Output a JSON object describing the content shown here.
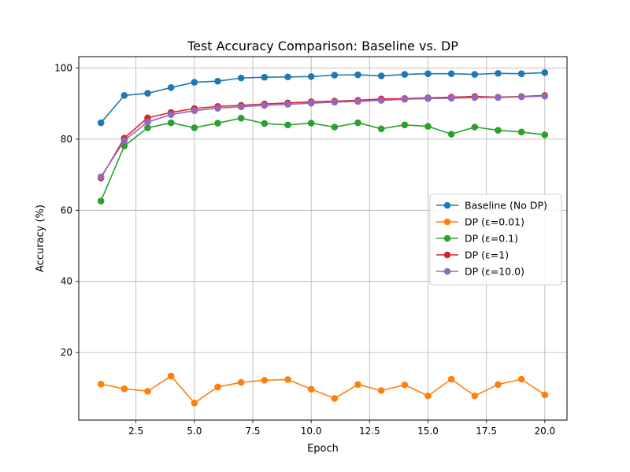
{
  "chart_data": {
    "type": "line",
    "title": "Test Accuracy Comparison: Baseline vs. DP",
    "xlabel": "Epoch",
    "ylabel": "Accuracy (%)",
    "xlim": [
      0.05,
      20.95
    ],
    "ylim": [
      1.0,
      103.2
    ],
    "xticks": [
      2.5,
      5.0,
      7.5,
      10.0,
      12.5,
      15.0,
      17.5,
      20.0
    ],
    "xtick_labels": [
      "2.5",
      "5.0",
      "7.5",
      "10.0",
      "12.5",
      "15.0",
      "17.5",
      "20.0"
    ],
    "yticks": [
      20,
      40,
      60,
      80,
      100
    ],
    "ytick_labels": [
      "20",
      "40",
      "60",
      "80",
      "100"
    ],
    "grid": true,
    "legend_position": "center-right",
    "x": [
      1,
      2,
      3,
      4,
      5,
      6,
      7,
      8,
      9,
      10,
      11,
      12,
      13,
      14,
      15,
      16,
      17,
      18,
      19,
      20
    ],
    "series": [
      {
        "name": "Baseline (No DP)",
        "color": "#1f77b4",
        "values": [
          84.6,
          92.3,
          92.9,
          94.5,
          96.0,
          96.3,
          97.2,
          97.4,
          97.5,
          97.6,
          98.0,
          98.1,
          97.8,
          98.2,
          98.4,
          98.4,
          98.2,
          98.5,
          98.4,
          98.7
        ]
      },
      {
        "name": "DP (ε=0.01)",
        "color": "#ff7f0e",
        "values": [
          11.1,
          9.8,
          9.1,
          13.4,
          5.8,
          10.3,
          11.6,
          12.2,
          12.4,
          9.7,
          7.1,
          11.0,
          9.3,
          10.9,
          7.8,
          12.5,
          7.8,
          11.0,
          12.5,
          8.1
        ]
      },
      {
        "name": "DP (ε=0.1)",
        "color": "#2ca02c",
        "values": [
          62.6,
          78.1,
          83.2,
          84.6,
          83.2,
          84.5,
          85.9,
          84.4,
          84.0,
          84.5,
          83.4,
          84.6,
          82.9,
          84.0,
          83.6,
          81.4,
          83.4,
          82.5,
          82.0,
          81.2
        ]
      },
      {
        "name": "DP (ε=1)",
        "color": "#d62728",
        "values": [
          69.1,
          80.3,
          86.0,
          87.5,
          88.6,
          89.2,
          89.5,
          89.9,
          90.2,
          90.5,
          90.7,
          90.9,
          91.3,
          91.4,
          91.6,
          91.8,
          92.0,
          91.8,
          92.0,
          92.3
        ]
      },
      {
        "name": "DP (ε=10.0)",
        "color": "#9467bd",
        "values": [
          69.4,
          79.6,
          84.8,
          86.9,
          88.0,
          88.7,
          89.1,
          89.5,
          89.8,
          90.1,
          90.4,
          90.6,
          90.9,
          91.2,
          91.4,
          91.5,
          91.7,
          91.7,
          91.9,
          92.1
        ]
      }
    ]
  }
}
